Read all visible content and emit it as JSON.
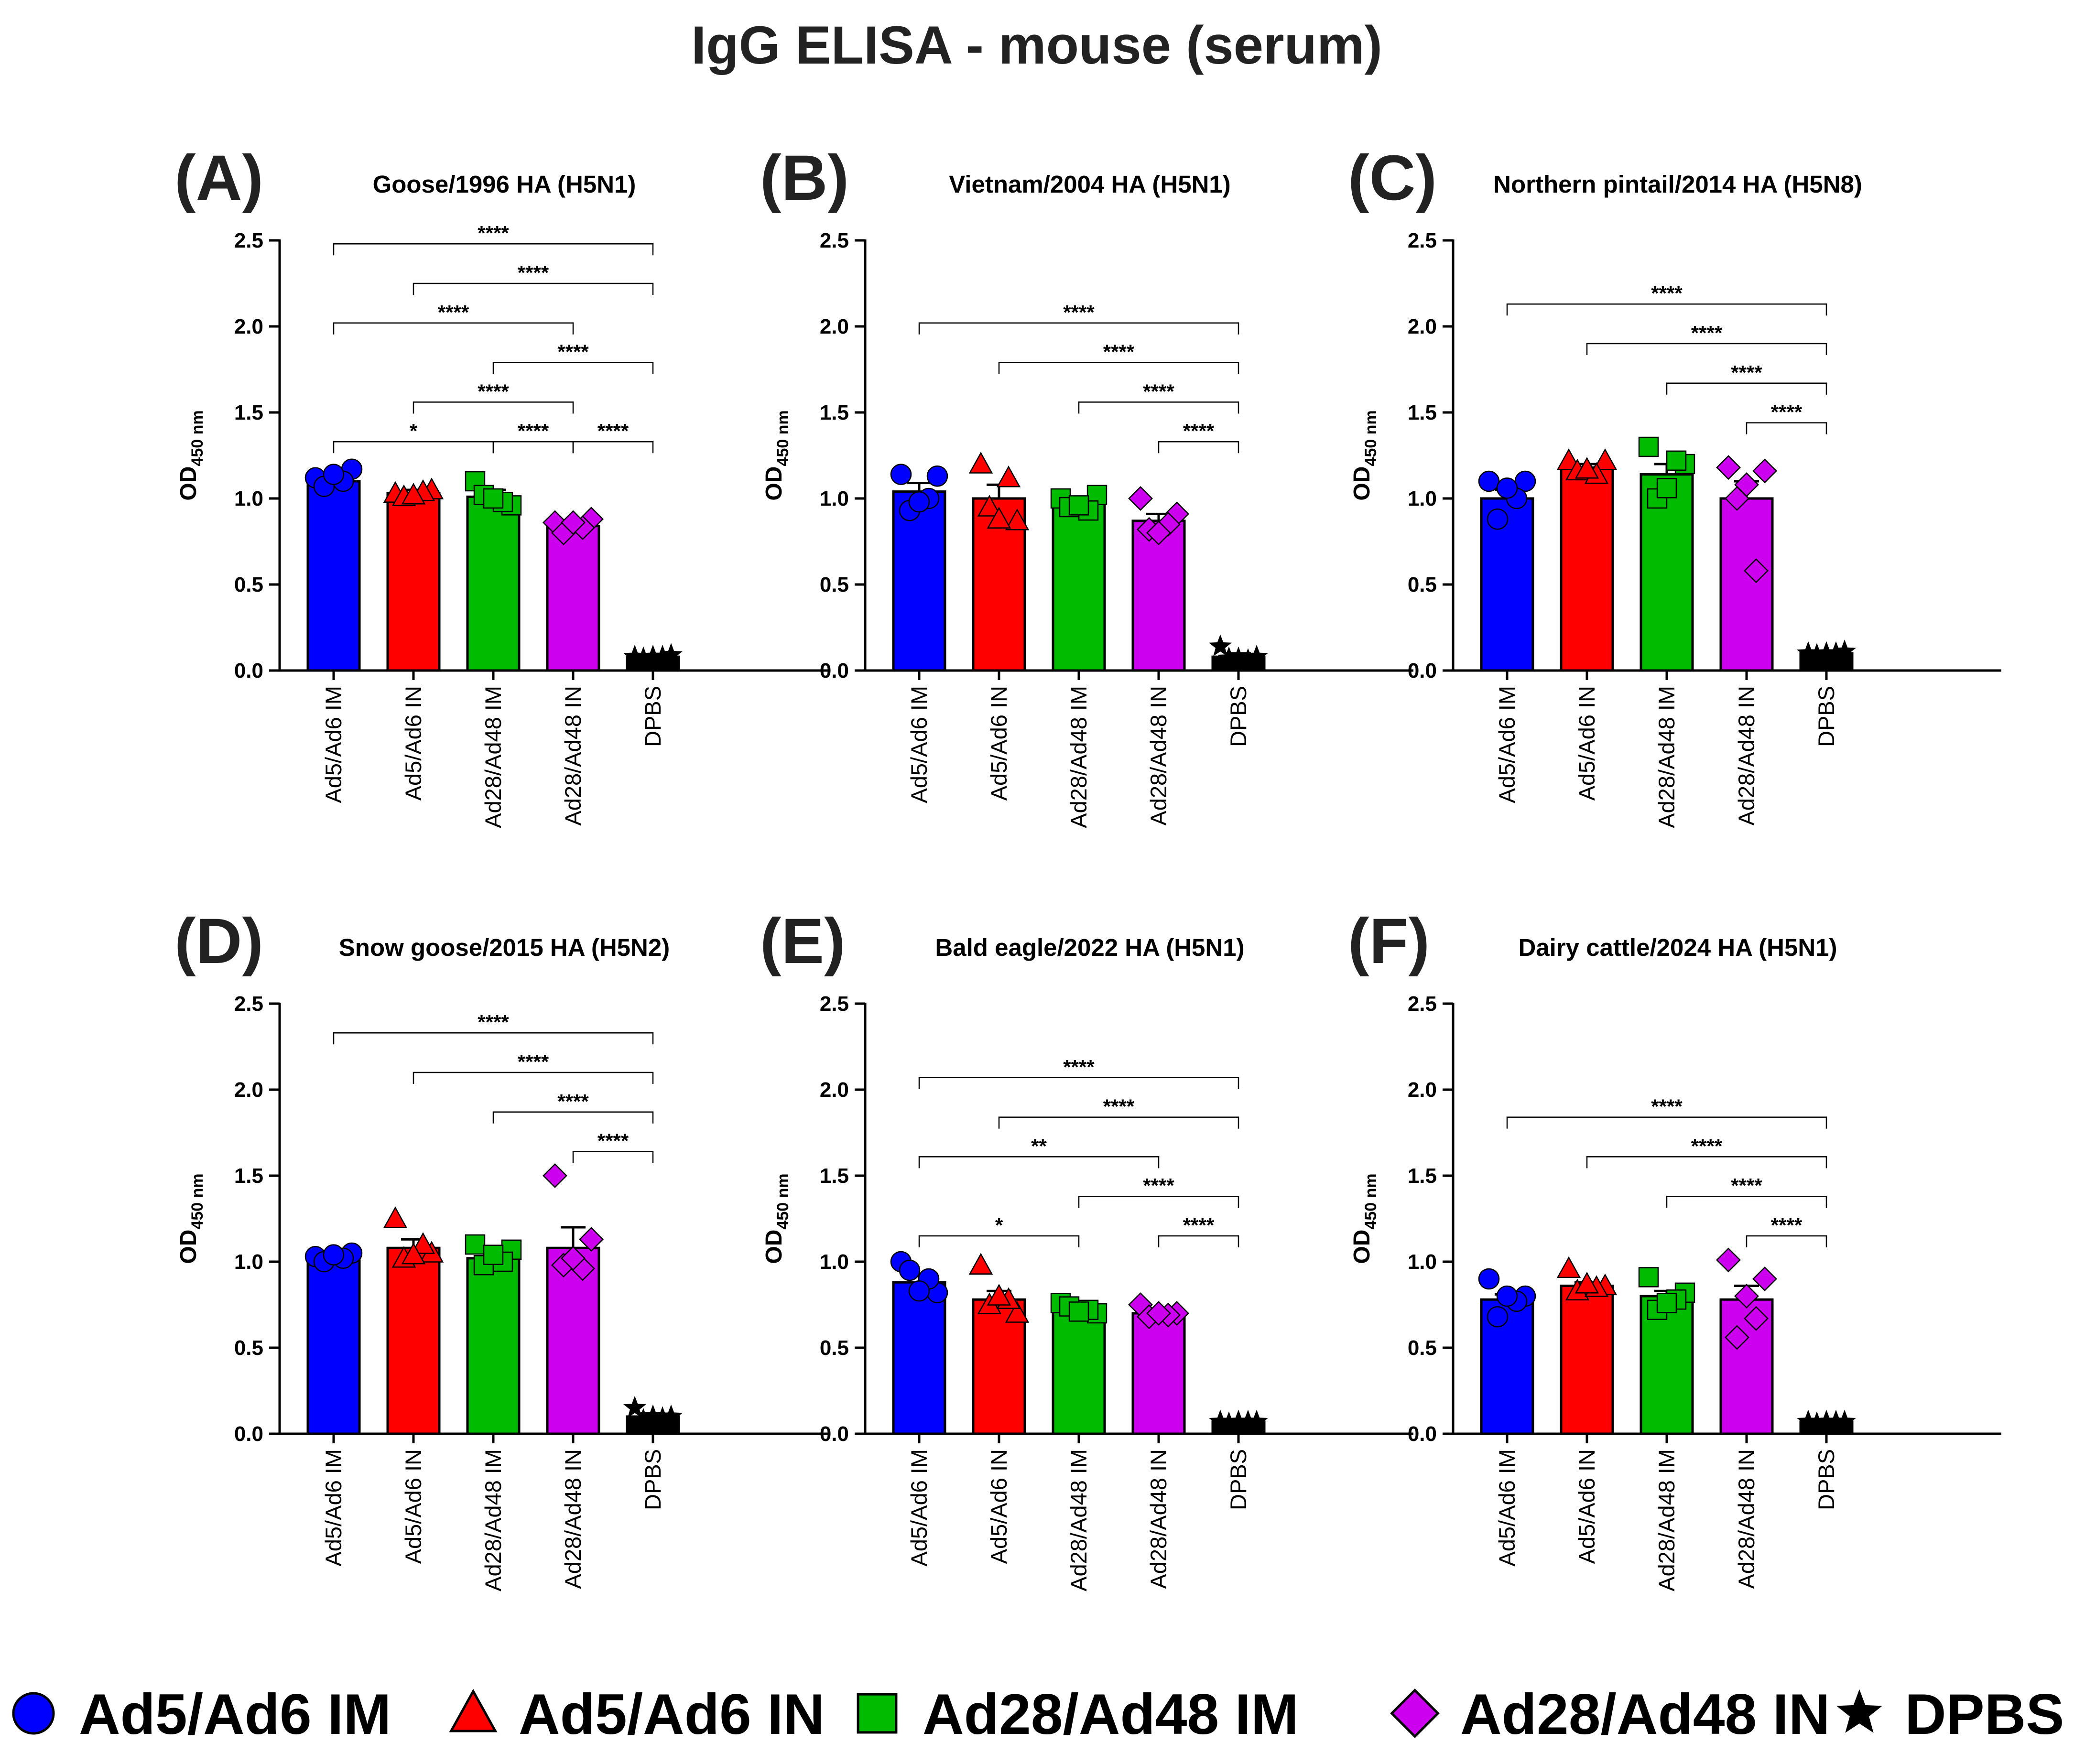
{
  "title": "IgG ELISA - mouse (serum)",
  "colors": {
    "Ad5/Ad6 IM": "#0000ff",
    "Ad5/Ad6 IN": "#ff0000",
    "Ad28/Ad48 IM": "#00bb00",
    "Ad28/Ad48 IN": "#cc00ee",
    "DPBS": "#000000"
  },
  "legend": [
    {
      "label": "Ad5/Ad6 IM",
      "marker": "circle"
    },
    {
      "label": "Ad5/Ad6 IN",
      "marker": "triangle"
    },
    {
      "label": "Ad28/Ad48 IM",
      "marker": "square"
    },
    {
      "label": "Ad28/Ad48 IN",
      "marker": "diamond"
    },
    {
      "label": "DPBS",
      "marker": "star"
    }
  ],
  "chart_data": [
    {
      "type": "bar",
      "letter": "(A)",
      "title": "Goose/1996 HA (H5N1)",
      "ylabel": "OD",
      "ylabel_sub": "450 nm",
      "ylim": [
        0,
        2.5
      ],
      "yticks": [
        "0.0",
        "0.5",
        "1.0",
        "1.5",
        "2.0",
        "2.5"
      ],
      "categories": [
        "Ad5/Ad6 IM",
        "Ad5/Ad6 IN",
        "Ad28/Ad48 IM",
        "Ad28/Ad48 IN",
        "DPBS"
      ],
      "values": [
        1.1,
        1.03,
        1.01,
        0.84,
        0.08
      ],
      "errors": [
        0.03,
        0.02,
        0.04,
        0.03,
        0.01
      ],
      "points": [
        [
          1.12,
          1.17,
          1.07,
          1.1,
          1.14
        ],
        [
          1.03,
          1.05,
          1.01,
          1.04,
          1.02
        ],
        [
          1.1,
          0.96,
          1.02,
          0.98,
          1.0
        ],
        [
          0.86,
          0.88,
          0.8,
          0.83,
          0.86
        ],
        [
          0.08,
          0.09,
          0.07,
          0.08,
          0.08
        ]
      ],
      "comparisons": [
        {
          "from": 0,
          "to": 4,
          "label": "****",
          "y": 2.48
        },
        {
          "from": 1,
          "to": 4,
          "label": "****",
          "y": 2.25
        },
        {
          "from": 0,
          "to": 3,
          "label": "****",
          "y": 2.02
        },
        {
          "from": 2,
          "to": 4,
          "label": "****",
          "y": 1.79
        },
        {
          "from": 1,
          "to": 3,
          "label": "****",
          "y": 1.56
        },
        {
          "from": 0,
          "to": 2,
          "label": "*",
          "y": 1.33
        },
        {
          "from": 2,
          "to": 3,
          "label": "****",
          "y": 1.33
        },
        {
          "from": 3,
          "to": 4,
          "label": "****",
          "y": 1.33
        }
      ]
    },
    {
      "type": "bar",
      "letter": "(B)",
      "title": "Vietnam/2004 HA (H5N1)",
      "ylabel": "OD",
      "ylabel_sub": "450 nm",
      "ylim": [
        0,
        2.5
      ],
      "yticks": [
        "0.0",
        "0.5",
        "1.0",
        "1.5",
        "2.0",
        "2.5"
      ],
      "categories": [
        "Ad5/Ad6 IM",
        "Ad5/Ad6 IN",
        "Ad28/Ad48 IM",
        "Ad28/Ad48 IN",
        "DPBS"
      ],
      "values": [
        1.04,
        1.0,
        0.97,
        0.87,
        0.08
      ],
      "errors": [
        0.05,
        0.08,
        0.02,
        0.04,
        0.02
      ],
      "points": [
        [
          1.14,
          1.13,
          0.93,
          1.0,
          0.98
        ],
        [
          1.2,
          0.87,
          0.95,
          1.12,
          0.88
        ],
        [
          1.0,
          1.02,
          0.95,
          0.93,
          0.96
        ],
        [
          1.0,
          0.91,
          0.82,
          0.85,
          0.8
        ],
        [
          0.14,
          0.08,
          0.07,
          0.06,
          0.07
        ]
      ],
      "comparisons": [
        {
          "from": 0,
          "to": 4,
          "label": "****",
          "y": 2.02
        },
        {
          "from": 1,
          "to": 4,
          "label": "****",
          "y": 1.79
        },
        {
          "from": 2,
          "to": 4,
          "label": "****",
          "y": 1.56
        },
        {
          "from": 3,
          "to": 4,
          "label": "****",
          "y": 1.33
        }
      ]
    },
    {
      "type": "bar",
      "letter": "(C)",
      "title": "Northern pintail/2014 HA (H5N8)",
      "ylabel": "OD",
      "ylabel_sub": "450 nm",
      "ylim": [
        0,
        2.5
      ],
      "yticks": [
        "0.0",
        "0.5",
        "1.0",
        "1.5",
        "2.0",
        "2.5"
      ],
      "categories": [
        "Ad5/Ad6 IM",
        "Ad5/Ad6 IN",
        "Ad28/Ad48 IM",
        "Ad28/Ad48 IN",
        "DPBS"
      ],
      "values": [
        1.0,
        1.18,
        1.14,
        1.0,
        0.1
      ],
      "errors": [
        0.05,
        0.02,
        0.06,
        0.1,
        0.01
      ],
      "points": [
        [
          1.1,
          1.1,
          0.88,
          1.0,
          1.06
        ],
        [
          1.22,
          1.22,
          1.16,
          1.14,
          1.17
        ],
        [
          1.3,
          1.2,
          1.0,
          1.22,
          1.06
        ],
        [
          1.18,
          1.16,
          1.0,
          0.58,
          1.08
        ],
        [
          0.1,
          0.11,
          0.09,
          0.1,
          0.1
        ]
      ],
      "comparisons": [
        {
          "from": 0,
          "to": 4,
          "label": "****",
          "y": 2.13
        },
        {
          "from": 1,
          "to": 4,
          "label": "****",
          "y": 1.9
        },
        {
          "from": 2,
          "to": 4,
          "label": "****",
          "y": 1.67
        },
        {
          "from": 3,
          "to": 4,
          "label": "****",
          "y": 1.44
        }
      ]
    },
    {
      "type": "bar",
      "letter": "(D)",
      "title": "Snow goose/2015 HA (H5N2)",
      "ylabel": "OD",
      "ylabel_sub": "450 nm",
      "ylim": [
        0,
        2.5
      ],
      "yticks": [
        "0.0",
        "0.5",
        "1.0",
        "1.5",
        "2.0",
        "2.5"
      ],
      "categories": [
        "Ad5/Ad6 IM",
        "Ad5/Ad6 IN",
        "Ad28/Ad48 IM",
        "Ad28/Ad48 IN",
        "DPBS"
      ],
      "values": [
        1.02,
        1.08,
        1.02,
        1.08,
        0.1
      ],
      "errors": [
        0.01,
        0.05,
        0.03,
        0.12,
        0.02
      ],
      "points": [
        [
          1.03,
          1.05,
          1.0,
          1.02,
          1.04
        ],
        [
          1.25,
          1.05,
          1.02,
          1.1,
          1.04
        ],
        [
          1.1,
          1.07,
          0.98,
          1.0,
          1.04
        ],
        [
          1.5,
          1.13,
          0.98,
          0.96,
          1.02
        ],
        [
          0.15,
          0.1,
          0.08,
          0.09,
          0.1
        ]
      ],
      "comparisons": [
        {
          "from": 0,
          "to": 4,
          "label": "****",
          "y": 2.33
        },
        {
          "from": 1,
          "to": 4,
          "label": "****",
          "y": 2.1
        },
        {
          "from": 2,
          "to": 4,
          "label": "****",
          "y": 1.87
        },
        {
          "from": 3,
          "to": 4,
          "label": "****",
          "y": 1.64
        }
      ]
    },
    {
      "type": "bar",
      "letter": "(E)",
      "title": "Bald eagle/2022 HA (H5N1)",
      "ylabel": "OD",
      "ylabel_sub": "450 nm",
      "ylim": [
        0,
        2.5
      ],
      "yticks": [
        "0.0",
        "0.5",
        "1.0",
        "1.5",
        "2.0",
        "2.5"
      ],
      "categories": [
        "Ad5/Ad6 IM",
        "Ad5/Ad6 IN",
        "Ad28/Ad48 IM",
        "Ad28/Ad48 IN",
        "DPBS"
      ],
      "values": [
        0.88,
        0.78,
        0.73,
        0.7,
        0.07
      ],
      "errors": [
        0.04,
        0.05,
        0.02,
        0.02,
        0.01
      ],
      "points": [
        [
          1.0,
          0.82,
          0.95,
          0.9,
          0.83
        ],
        [
          0.98,
          0.7,
          0.75,
          0.78,
          0.8
        ],
        [
          0.76,
          0.7,
          0.74,
          0.72,
          0.71
        ],
        [
          0.75,
          0.7,
          0.68,
          0.69,
          0.7
        ],
        [
          0.07,
          0.07,
          0.06,
          0.07,
          0.07
        ]
      ],
      "comparisons": [
        {
          "from": 0,
          "to": 4,
          "label": "****",
          "y": 2.07
        },
        {
          "from": 1,
          "to": 4,
          "label": "****",
          "y": 1.84
        },
        {
          "from": 0,
          "to": 3,
          "label": "**",
          "y": 1.61
        },
        {
          "from": 2,
          "to": 4,
          "label": "****",
          "y": 1.38
        },
        {
          "from": 0,
          "to": 2,
          "label": "*",
          "y": 1.15
        },
        {
          "from": 3,
          "to": 4,
          "label": "****",
          "y": 1.15
        }
      ]
    },
    {
      "type": "bar",
      "letter": "(F)",
      "title": "Dairy cattle/2024 HA (H5N1)",
      "ylabel": "OD",
      "ylabel_sub": "450 nm",
      "ylim": [
        0,
        2.5
      ],
      "yticks": [
        "0.0",
        "0.5",
        "1.0",
        "1.5",
        "2.0",
        "2.5"
      ],
      "categories": [
        "Ad5/Ad6 IM",
        "Ad5/Ad6 IN",
        "Ad28/Ad48 IM",
        "Ad28/Ad48 IN",
        "DPBS"
      ],
      "values": [
        0.78,
        0.86,
        0.8,
        0.78,
        0.07
      ],
      "errors": [
        0.03,
        0.02,
        0.03,
        0.08,
        0.01
      ],
      "points": [
        [
          0.9,
          0.8,
          0.68,
          0.77,
          0.8
        ],
        [
          0.96,
          0.86,
          0.83,
          0.85,
          0.87
        ],
        [
          0.91,
          0.82,
          0.72,
          0.78,
          0.76
        ],
        [
          1.01,
          0.9,
          0.56,
          0.67,
          0.8
        ],
        [
          0.07,
          0.07,
          0.06,
          0.07,
          0.07
        ]
      ],
      "comparisons": [
        {
          "from": 0,
          "to": 4,
          "label": "****",
          "y": 1.84
        },
        {
          "from": 1,
          "to": 4,
          "label": "****",
          "y": 1.61
        },
        {
          "from": 2,
          "to": 4,
          "label": "****",
          "y": 1.38
        },
        {
          "from": 3,
          "to": 4,
          "label": "****",
          "y": 1.15
        }
      ]
    }
  ]
}
